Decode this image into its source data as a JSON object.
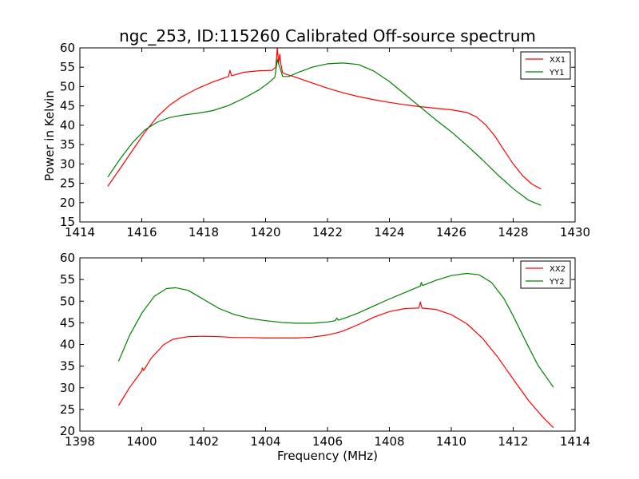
{
  "chart_data": [
    {
      "type": "line",
      "title": "ngc_253, ID:115260 Calibrated Off-source spectrum",
      "xlabel": "",
      "ylabel": "Power in Kelvin",
      "xlim": [
        1414,
        1430
      ],
      "ylim": [
        15,
        60
      ],
      "xticks": [
        "1414",
        "1416",
        "1418",
        "1420",
        "1422",
        "1424",
        "1426",
        "1428",
        "1430"
      ],
      "yticks": [
        "15",
        "20",
        "25",
        "30",
        "35",
        "40",
        "45",
        "50",
        "55",
        "60"
      ],
      "grid": false,
      "legend_position": "top-right",
      "series": [
        {
          "name": "XX1",
          "color": "#ff0000",
          "x": [
            1414.9,
            1415.3,
            1415.7,
            1416.1,
            1416.5,
            1416.9,
            1417.3,
            1417.8,
            1418.3,
            1418.8,
            1418.85,
            1418.9,
            1419.3,
            1419.8,
            1420.2,
            1420.33,
            1420.38,
            1420.42,
            1420.46,
            1420.5,
            1420.55,
            1420.65,
            1420.9,
            1421.4,
            1422.0,
            1422.5,
            1423.0,
            1423.5,
            1424.0,
            1424.5,
            1425.0,
            1425.5,
            1426.0,
            1426.5,
            1426.8,
            1427.1,
            1427.4,
            1427.7,
            1428.0,
            1428.3,
            1428.6,
            1428.9
          ],
          "y": [
            24.2,
            28.8,
            33.5,
            38.2,
            42.2,
            45.2,
            47.4,
            49.5,
            51.2,
            52.6,
            54.2,
            52.8,
            53.7,
            54.1,
            54.2,
            55.0,
            60.0,
            56.0,
            58.4,
            55.5,
            53.6,
            53.2,
            52.6,
            51.2,
            49.6,
            48.4,
            47.4,
            46.6,
            45.9,
            45.3,
            44.8,
            44.4,
            44.0,
            43.3,
            42.2,
            40.2,
            37.3,
            33.6,
            30.0,
            27.0,
            24.8,
            23.5
          ]
        },
        {
          "name": "YY1",
          "color": "#008000",
          "x": [
            1414.9,
            1415.3,
            1415.7,
            1416.1,
            1416.5,
            1416.9,
            1417.3,
            1417.8,
            1418.3,
            1418.8,
            1419.3,
            1419.8,
            1420.1,
            1420.3,
            1420.38,
            1420.42,
            1420.47,
            1420.55,
            1420.75,
            1421.0,
            1421.5,
            1422.0,
            1422.5,
            1423.0,
            1423.5,
            1424.0,
            1424.5,
            1425.0,
            1425.5,
            1426.0,
            1426.5,
            1427.0,
            1427.5,
            1428.0,
            1428.5,
            1428.9
          ],
          "y": [
            26.6,
            31.3,
            35.5,
            38.8,
            40.8,
            42.0,
            42.6,
            43.1,
            43.8,
            45.1,
            47.0,
            49.2,
            51.0,
            52.4,
            57.0,
            55.8,
            54.8,
            52.6,
            52.6,
            53.5,
            55.0,
            55.9,
            56.1,
            55.7,
            54.0,
            51.3,
            48.0,
            44.7,
            41.4,
            38.3,
            34.8,
            31.1,
            27.2,
            23.6,
            20.6,
            19.3
          ]
        }
      ]
    },
    {
      "type": "line",
      "title": "",
      "xlabel": "Frequency (MHz)",
      "ylabel": "",
      "xlim": [
        1398,
        1414
      ],
      "ylim": [
        20,
        60
      ],
      "xticks": [
        "1398",
        "1400",
        "1402",
        "1404",
        "1406",
        "1408",
        "1410",
        "1412",
        "1414"
      ],
      "yticks": [
        "20",
        "25",
        "30",
        "35",
        "40",
        "45",
        "50",
        "55",
        "60"
      ],
      "grid": false,
      "legend_position": "top-right",
      "series": [
        {
          "name": "XX2",
          "color": "#ff0000",
          "x": [
            1399.25,
            1399.6,
            1400.0,
            1400.02,
            1400.06,
            1400.3,
            1400.7,
            1401.0,
            1401.5,
            1402.0,
            1402.5,
            1403.0,
            1403.5,
            1404.0,
            1404.5,
            1405.0,
            1405.5,
            1406.0,
            1406.3,
            1406.5,
            1407.0,
            1407.5,
            1408.0,
            1408.5,
            1408.95,
            1409.0,
            1409.05,
            1409.5,
            1410.0,
            1410.5,
            1411.0,
            1411.5,
            1412.0,
            1412.5,
            1413.0,
            1413.3
          ],
          "y": [
            25.9,
            30.0,
            33.9,
            34.6,
            34.0,
            36.8,
            39.9,
            41.2,
            41.8,
            41.9,
            41.8,
            41.6,
            41.6,
            41.5,
            41.5,
            41.5,
            41.7,
            42.2,
            42.7,
            43.1,
            44.6,
            46.3,
            47.6,
            48.3,
            48.4,
            49.8,
            48.4,
            48.1,
            46.9,
            44.8,
            41.5,
            37.1,
            32.0,
            27.0,
            22.9,
            20.8
          ]
        },
        {
          "name": "YY2",
          "color": "#008000",
          "x": [
            1399.25,
            1399.6,
            1400.0,
            1400.4,
            1400.8,
            1401.1,
            1401.5,
            1402.0,
            1402.5,
            1403.0,
            1403.5,
            1404.0,
            1404.5,
            1405.0,
            1405.5,
            1406.0,
            1406.25,
            1406.3,
            1406.35,
            1406.6,
            1407.0,
            1407.5,
            1408.0,
            1408.5,
            1409.0,
            1409.03,
            1409.07,
            1409.5,
            1410.0,
            1410.5,
            1410.9,
            1411.3,
            1411.7,
            1412.0,
            1412.4,
            1412.8,
            1413.3
          ],
          "y": [
            36.1,
            42.0,
            47.2,
            51.1,
            52.9,
            53.1,
            52.5,
            50.4,
            48.3,
            46.9,
            46.0,
            45.5,
            45.1,
            44.9,
            44.9,
            45.2,
            45.5,
            46.1,
            45.6,
            46.2,
            47.3,
            48.9,
            50.5,
            52.0,
            53.5,
            54.3,
            53.6,
            54.8,
            55.9,
            56.4,
            56.1,
            54.3,
            50.6,
            46.6,
            40.8,
            35.2,
            30.1
          ]
        }
      ]
    }
  ]
}
